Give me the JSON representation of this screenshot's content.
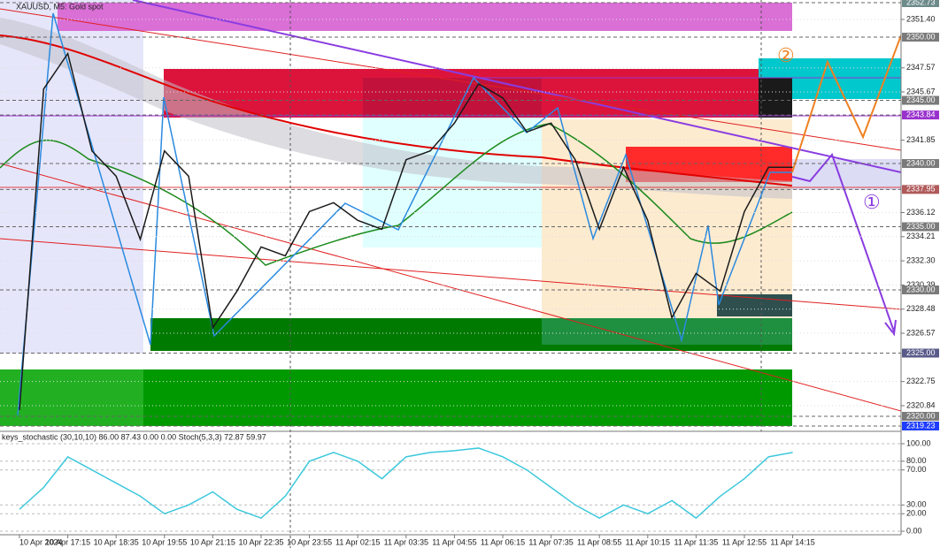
{
  "chart_data": [
    {
      "type": "line",
      "title": "XAUUSD, M5: Gold spot",
      "categories": [
        "10 Apr 2024",
        null,
        "10 Apr 17:15",
        null,
        "10 Apr 18:35",
        null,
        "10 Apr 19:55",
        null,
        "10 Apr 21:15",
        null,
        "10 Apr 22:35",
        null,
        "10 Apr 23:55",
        null,
        "11 Apr 02:15",
        null,
        "11 Apr 03:35",
        null,
        "11 Apr 04:55",
        null,
        "11 Apr 06:15",
        null,
        "11 Apr 07:35",
        null,
        "11 Apr 08:55",
        null,
        "11 Apr 10:15",
        null,
        "11 Apr 11:35",
        null,
        "11 Apr 12:55",
        null,
        "11 Apr 14:15"
      ],
      "series": [
        {
          "color": "#1a1a1a",
          "values": [
            2320.5,
            2345.9,
            2348.7,
            2341.0,
            2339.0,
            2334.0,
            2341.0,
            2339.0,
            2327.0,
            2329.9,
            2333.4,
            2332.7,
            2336.2,
            2336.9,
            2335.5,
            2334.8,
            2340.3,
            2341.0,
            2343.2,
            2346.3,
            2345.2,
            2342.5,
            2343.2,
            2340.3,
            2334.8,
            2339.7,
            2335.5,
            2327.8,
            2331.3,
            2329.9,
            2336.2,
            2339.7,
            2339.7
          ]
        }
      ],
      "ylim": [
        2319.23,
        2352.73
      ],
      "yticks": [
        {
          "value": 2351.4,
          "label": "2351.40"
        },
        {
          "value": 2347.57,
          "label": "2347.57"
        },
        {
          "value": 2345.67,
          "label": "2345.67"
        },
        {
          "value": 2341.85,
          "label": "2341.85"
        },
        {
          "value": 2336.12,
          "label": "2336.12"
        },
        {
          "value": 2334.21,
          "label": "2334.21"
        },
        {
          "value": 2332.3,
          "label": "2332.30"
        },
        {
          "value": 2330.39,
          "label": "2330.39"
        },
        {
          "value": 2328.48,
          "label": "2328.48"
        },
        {
          "value": 2326.57,
          "label": "2326.57"
        },
        {
          "value": 2322.75,
          "label": "2322.75"
        },
        {
          "value": 2320.84,
          "label": "2320.84"
        }
      ],
      "price_levels": [
        {
          "value": 2352.73,
          "label": "2352.73",
          "color": "#6e8b8b"
        },
        {
          "value": 2350.0,
          "label": "2350.00",
          "color": "#7a7a7a"
        },
        {
          "value": 2345.0,
          "label": "2345.00",
          "color": "#7a7a7a"
        },
        {
          "value": 2343.84,
          "label": "2343.84",
          "color": "#9932cc"
        },
        {
          "value": 2340.0,
          "label": "2340.00",
          "color": "#7a7a7a"
        },
        {
          "value": 2337.95,
          "label": "2337.95",
          "color": "#b05a5a"
        },
        {
          "value": 2335.0,
          "label": "2335.00",
          "color": "#7a7a7a"
        },
        {
          "value": 2330.0,
          "label": "2330.00",
          "color": "#7a7a7a"
        },
        {
          "value": 2325.0,
          "label": "2325.00",
          "color": "#5a5a8a"
        },
        {
          "value": 2320.0,
          "label": "2320.00",
          "color": "#7a7a7a"
        },
        {
          "value": 2319.23,
          "label": "2319.23",
          "color": "#1e3cff"
        }
      ],
      "annotations": [
        "①",
        "②"
      ]
    },
    {
      "type": "line",
      "title": "keys_stochastic (30,10,10) 86.00 87.43 0.00 0.00 Stoch(5,3,3) 72.87 59.97",
      "series": [
        {
          "color": "#3cc8dc",
          "values": [
            25,
            50,
            85,
            70,
            55,
            40,
            20,
            30,
            45,
            25,
            15,
            40,
            80,
            90,
            80,
            60,
            85,
            90,
            92,
            95,
            85,
            70,
            50,
            30,
            15,
            30,
            20,
            35,
            15,
            40,
            60,
            85,
            90
          ]
        }
      ],
      "ylim": [
        0,
        100
      ],
      "yticks": [
        {
          "value": 100,
          "label": "100.00"
        },
        {
          "value": 80,
          "label": "80.00"
        },
        {
          "value": 70,
          "label": "70.00"
        },
        {
          "value": 30,
          "label": "30.00"
        },
        {
          "value": 20,
          "label": "20.00"
        },
        {
          "value": 0,
          "label": "0.00"
        }
      ]
    }
  ]
}
